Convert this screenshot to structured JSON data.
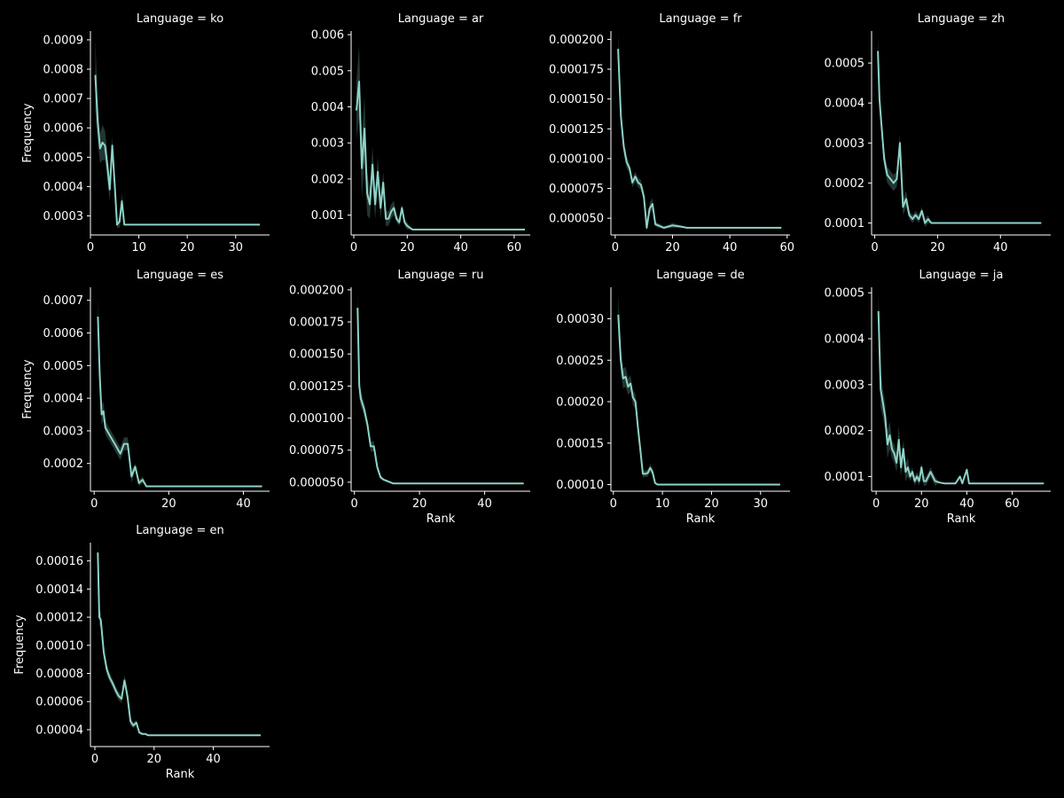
{
  "figure": {
    "background": "#000000",
    "foreground": "#ffffff",
    "line_color": "#8dd3c7",
    "band_color": "#8dd3c7"
  },
  "chart_data": [
    {
      "type": "line",
      "title": "Language = ko",
      "xlabel": "",
      "ylabel": "Frequency",
      "xlim": [
        0,
        37
      ],
      "ylim": [
        0.000235,
        0.00093
      ],
      "xticks": [
        0,
        10,
        20,
        30
      ],
      "yticks": [
        0.0003,
        0.0004,
        0.0005,
        0.0006,
        0.0007,
        0.0008,
        0.0009
      ],
      "ytick_labels": [
        "0.0003",
        "0.0004",
        "0.0005",
        "0.0006",
        "0.0007",
        "0.0008",
        "0.0009"
      ],
      "x": [
        1,
        1.5,
        2,
        2.5,
        3,
        3.5,
        4,
        4.5,
        5,
        5.5,
        6,
        6.5,
        7,
        8,
        10,
        15,
        20,
        25,
        30,
        35
      ],
      "y": [
        0.00078,
        0.00062,
        0.00053,
        0.00055,
        0.00054,
        0.00047,
        0.00039,
        0.00054,
        0.00041,
        0.00027,
        0.00028,
        0.00035,
        0.00027,
        0.00027,
        0.00027,
        0.00027,
        0.00027,
        0.00027,
        0.00027,
        0.00027
      ],
      "band": [
        0.00012,
        7e-05,
        5e-05,
        6e-05,
        5e-05,
        5e-05,
        4e-05,
        3e-05,
        2e-05,
        1e-05,
        2e-05,
        3e-05,
        0,
        0,
        0,
        0,
        0,
        0,
        0,
        0
      ]
    },
    {
      "type": "line",
      "title": "Language = ar",
      "xlabel": "",
      "ylabel": "",
      "xlim": [
        -1,
        66
      ],
      "ylim": [
        0.00045,
        0.0061
      ],
      "xticks": [
        0,
        20,
        40,
        60
      ],
      "yticks": [
        0.001,
        0.002,
        0.003,
        0.004,
        0.005,
        0.006
      ],
      "ytick_labels": [
        "0.001",
        "0.002",
        "0.003",
        "0.004",
        "0.005",
        "0.006"
      ],
      "x": [
        1,
        2,
        3,
        4,
        5,
        6,
        7,
        8,
        9,
        10,
        11,
        12,
        13,
        14,
        15,
        16,
        17,
        18,
        19,
        20,
        22,
        25,
        30,
        40,
        50,
        64
      ],
      "y": [
        0.0039,
        0.0047,
        0.0023,
        0.0034,
        0.0016,
        0.0013,
        0.0024,
        0.0013,
        0.0022,
        0.0012,
        0.0019,
        0.0009,
        0.0009,
        0.0011,
        0.0012,
        0.0009,
        0.0008,
        0.0012,
        0.0008,
        0.0007,
        0.0006,
        0.0006,
        0.0006,
        0.0006,
        0.0006,
        0.0006
      ],
      "band": [
        0.0008,
        0.001,
        0.0008,
        0.0009,
        0.0006,
        0.0004,
        0.0005,
        0.0004,
        0.0004,
        0.0003,
        0.0003,
        0.0002,
        0.0002,
        0.0002,
        0.0002,
        0.0001,
        0.0001,
        0.0001,
        0.0001,
        0.0001,
        0,
        0,
        0,
        0,
        0,
        0
      ]
    },
    {
      "type": "line",
      "title": "Language = fr",
      "xlabel": "",
      "ylabel": "",
      "xlim": [
        -1.5,
        61
      ],
      "ylim": [
        3.6e-05,
        0.000207
      ],
      "xticks": [
        0,
        20,
        40,
        60
      ],
      "yticks": [
        5e-05,
        7.5e-05,
        0.0001,
        0.000125,
        0.00015,
        0.000175,
        0.0002
      ],
      "ytick_labels": [
        "0.000050",
        "0.000075",
        "0.000100",
        "0.000125",
        "0.000150",
        "0.000175",
        "0.000200"
      ],
      "x": [
        1,
        2,
        3,
        4,
        5,
        6,
        7,
        8,
        9,
        10,
        11,
        12,
        13,
        14,
        15,
        17,
        20,
        23,
        25,
        30,
        40,
        50,
        58
      ],
      "y": [
        0.000192,
        0.000135,
        0.00011,
        9.7e-05,
        9.2e-05,
        8e-05,
        8.5e-05,
        8e-05,
        7.8e-05,
        6.8e-05,
        4.2e-05,
        5.8e-05,
        6.2e-05,
        4.5e-05,
        4.4e-05,
        4.2e-05,
        4.4e-05,
        4.3e-05,
        4.2e-05,
        4.2e-05,
        4.2e-05,
        4.2e-05,
        4.2e-05
      ],
      "band": [
        1.2e-05,
        8e-06,
        6e-06,
        5e-06,
        4e-06,
        4e-06,
        4e-06,
        4e-06,
        4e-06,
        4e-06,
        3e-06,
        5e-06,
        5e-06,
        2e-06,
        2e-06,
        1e-06,
        2e-06,
        1e-06,
        0,
        0,
        0,
        0,
        0
      ]
    },
    {
      "type": "line",
      "title": "Language = zh",
      "xlabel": "",
      "ylabel": "",
      "xlim": [
        -1,
        56
      ],
      "ylim": [
        7e-05,
        0.00058
      ],
      "xticks": [
        0,
        20,
        40
      ],
      "yticks": [
        0.0001,
        0.0002,
        0.0003,
        0.0004,
        0.0005
      ],
      "ytick_labels": [
        "0.0001",
        "0.0002",
        "0.0003",
        "0.0004",
        "0.0005"
      ],
      "x": [
        1,
        1.5,
        2,
        2.5,
        3,
        4,
        5,
        6,
        7,
        8,
        9,
        10,
        11,
        12,
        13,
        14,
        15,
        16,
        17,
        18,
        20,
        30,
        40,
        53
      ],
      "y": [
        0.00053,
        0.00041,
        0.00036,
        0.00031,
        0.00026,
        0.00022,
        0.00021,
        0.0002,
        0.00021,
        0.0003,
        0.00014,
        0.00016,
        0.00012,
        0.00011,
        0.00012,
        0.00011,
        0.00013,
        0.0001,
        0.00011,
        0.0001,
        0.0001,
        0.0001,
        0.0001,
        0.0001
      ],
      "band": [
        4e-05,
        3e-05,
        2e-05,
        2e-05,
        2e-05,
        2e-05,
        2e-05,
        2e-05,
        2e-05,
        2e-05,
        2e-05,
        2e-05,
        1e-05,
        1e-05,
        1e-05,
        1e-05,
        1e-05,
        1e-05,
        1e-05,
        0,
        0,
        0,
        0,
        0
      ]
    },
    {
      "type": "line",
      "title": "Language = es",
      "xlabel": "",
      "ylabel": "Frequency",
      "xlim": [
        -1,
        47
      ],
      "ylim": [
        0.000115,
        0.00074
      ],
      "xticks": [
        0,
        20,
        40
      ],
      "yticks": [
        0.0002,
        0.0003,
        0.0004,
        0.0005,
        0.0006,
        0.0007
      ],
      "ytick_labels": [
        "0.0002",
        "0.0003",
        "0.0004",
        "0.0005",
        "0.0006",
        "0.0007"
      ],
      "x": [
        1,
        1.5,
        2,
        2.5,
        3,
        4,
        5,
        6,
        7,
        8,
        9,
        10,
        11,
        12,
        13,
        14,
        15,
        20,
        30,
        45
      ],
      "y": [
        0.00065,
        0.00047,
        0.00035,
        0.00036,
        0.00031,
        0.00029,
        0.00027,
        0.00025,
        0.00023,
        0.00026,
        0.00026,
        0.00016,
        0.00019,
        0.00014,
        0.00015,
        0.00013,
        0.00013,
        0.00013,
        0.00013,
        0.00013
      ],
      "band": [
        6e-05,
        4e-05,
        3e-05,
        3e-05,
        2e-05,
        2e-05,
        2e-05,
        2e-05,
        2e-05,
        2e-05,
        2e-05,
        2e-05,
        1e-05,
        1e-05,
        1e-05,
        0,
        0,
        0,
        0,
        0
      ]
    },
    {
      "type": "line",
      "title": "Language = ru",
      "xlabel": "Rank",
      "ylabel": "",
      "xlim": [
        -1,
        54
      ],
      "ylim": [
        4.3e-05,
        0.000202
      ],
      "xticks": [
        0,
        20,
        40
      ],
      "yticks": [
        5e-05,
        7.5e-05,
        0.0001,
        0.000125,
        0.00015,
        0.000175,
        0.0002
      ],
      "ytick_labels": [
        "0.000050",
        "0.000075",
        "0.000100",
        "0.000125",
        "0.000150",
        "0.000175",
        "0.000200"
      ],
      "x": [
        1,
        1.5,
        2,
        3,
        4,
        5,
        6,
        7,
        8,
        9,
        10,
        11,
        12,
        15,
        20,
        30,
        40,
        52
      ],
      "y": [
        0.000186,
        0.000125,
        0.000115,
        0.000107,
        9.5e-05,
        7.8e-05,
        7.8e-05,
        6.2e-05,
        5.4e-05,
        5.2e-05,
        5.1e-05,
        5e-05,
        4.9e-05,
        4.9e-05,
        4.9e-05,
        4.9e-05,
        4.9e-05,
        4.9e-05
      ],
      "band": [
        1.2e-05,
        9e-06,
        6e-06,
        5e-06,
        4e-06,
        4e-06,
        4e-06,
        3e-06,
        2e-06,
        1e-06,
        1e-06,
        0,
        0,
        0,
        0,
        0,
        0,
        0
      ]
    },
    {
      "type": "line",
      "title": "Language = de",
      "xlabel": "Rank",
      "ylabel": "",
      "xlim": [
        -0.5,
        36
      ],
      "ylim": [
        9.2e-05,
        0.000338
      ],
      "xticks": [
        0,
        10,
        20,
        30
      ],
      "yticks": [
        0.0001,
        0.00015,
        0.0002,
        0.00025,
        0.0003
      ],
      "ytick_labels": [
        "0.00010",
        "0.00015",
        "0.00020",
        "0.00025",
        "0.00030"
      ],
      "x": [
        1,
        1.5,
        2,
        2.5,
        3,
        3.5,
        4,
        4.5,
        5,
        5.5,
        6,
        6.5,
        7,
        7.5,
        8,
        8.5,
        9,
        10,
        15,
        20,
        25,
        30,
        34
      ],
      "y": [
        0.000305,
        0.00025,
        0.000228,
        0.00023,
        0.000218,
        0.000222,
        0.000205,
        0.0002,
        0.00017,
        0.000142,
        0.000113,
        0.000113,
        0.000114,
        0.00012,
        0.000115,
        0.000102,
        0.0001,
        0.0001,
        0.0001,
        0.0001,
        0.0001,
        0.0001,
        0.0001
      ],
      "band": [
        2.5e-05,
        1.5e-05,
        1.2e-05,
        1.2e-05,
        1e-05,
        1e-05,
        9e-06,
        9e-06,
        8e-06,
        6e-06,
        4e-06,
        4e-06,
        4e-06,
        5e-06,
        4e-06,
        2e-06,
        0,
        0,
        0,
        0,
        0,
        0,
        0
      ]
    },
    {
      "type": "line",
      "title": "Language = ja",
      "xlabel": "Rank",
      "ylabel": "",
      "xlim": [
        -2,
        77
      ],
      "ylim": [
        6.8e-05,
        0.000512
      ],
      "xticks": [
        0,
        20,
        40,
        60
      ],
      "yticks": [
        0.0001,
        0.0002,
        0.0003,
        0.0004,
        0.0005
      ],
      "ytick_labels": [
        "0.0001",
        "0.0002",
        "0.0003",
        "0.0004",
        "0.0005"
      ],
      "x": [
        1,
        2,
        3,
        4,
        5,
        6,
        7,
        8,
        9,
        10,
        11,
        12,
        13,
        14,
        15,
        16,
        17,
        18,
        19,
        20,
        21,
        22,
        24,
        26,
        28,
        30,
        35,
        37,
        38,
        40,
        41,
        45,
        50,
        60,
        74
      ],
      "y": [
        0.00046,
        0.00029,
        0.00026,
        0.00023,
        0.00017,
        0.00019,
        0.00016,
        0.00015,
        0.00013,
        0.00018,
        0.00012,
        0.00016,
        0.00011,
        0.00012,
        0.0001,
        0.00011,
        9e-05,
        0.0001,
        9e-05,
        0.00012,
        9e-05,
        9e-05,
        0.00011,
        9e-05,
        8.7e-05,
        8.5e-05,
        8.5e-05,
        0.0001,
        8.5e-05,
        0.000115,
        8.5e-05,
        8.5e-05,
        8.5e-05,
        8.5e-05,
        8.5e-05
      ],
      "band": [
        4e-05,
        4e-05,
        3e-05,
        3e-05,
        3e-05,
        3e-05,
        2e-05,
        2e-05,
        2e-05,
        3e-05,
        2e-05,
        2e-05,
        2e-05,
        2e-05,
        1e-05,
        1e-05,
        1e-05,
        1e-05,
        1e-05,
        1e-05,
        1e-05,
        1e-05,
        1e-05,
        1e-05,
        0,
        0,
        0,
        0,
        0,
        0,
        0,
        0,
        0,
        0,
        0
      ]
    },
    {
      "type": "line",
      "title": "Language = en",
      "xlabel": "Rank",
      "ylabel": "Frequency",
      "xlim": [
        -1.5,
        59
      ],
      "ylim": [
        2.8e-05,
        0.000173
      ],
      "xticks": [
        0,
        20,
        40
      ],
      "yticks": [
        4e-05,
        6e-05,
        8e-05,
        0.0001,
        0.00012,
        0.00014,
        0.00016
      ],
      "ytick_labels": [
        "0.00004",
        "0.00006",
        "0.00008",
        "0.00010",
        "0.00012",
        "0.00014",
        "0.00016"
      ],
      "x": [
        1,
        1.5,
        2,
        3,
        4,
        5,
        6,
        7,
        8,
        9,
        10,
        11,
        12,
        13,
        14,
        15,
        16,
        17,
        18,
        20,
        30,
        40,
        56
      ],
      "y": [
        0.000166,
        0.00012,
        0.000118,
        9.5e-05,
        8.3e-05,
        7.7e-05,
        7.3e-05,
        6.8e-05,
        6.4e-05,
        6.2e-05,
        7.5e-05,
        6.4e-05,
        4.6e-05,
        4.3e-05,
        4.5e-05,
        3.8e-05,
        3.7e-05,
        3.7e-05,
        3.6e-05,
        3.6e-05,
        3.6e-05,
        3.6e-05,
        3.6e-05
      ],
      "band": [
        8e-06,
        6e-06,
        5e-06,
        4e-06,
        4e-06,
        3e-06,
        3e-06,
        3e-06,
        3e-06,
        3e-06,
        4e-06,
        4e-06,
        3e-06,
        2e-06,
        2e-06,
        1e-06,
        1e-06,
        0,
        0,
        0,
        0,
        0,
        0
      ]
    }
  ]
}
